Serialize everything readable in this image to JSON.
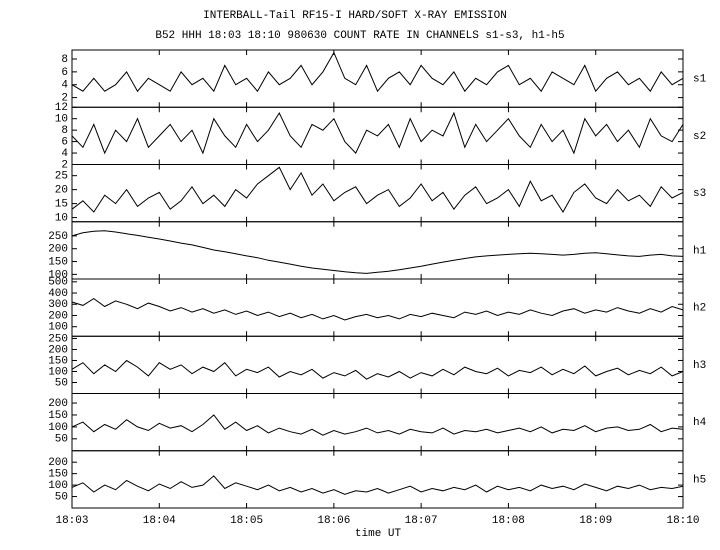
{
  "chart_data": {
    "type": "multi-panel-line",
    "title": "INTERBALL-Tail RF15-I HARD/SOFT X-RAY EMISSION",
    "subtitle": "B52 HHH 18:03 18:10 980630  COUNT RATE IN CHANNELS s1-s3, h1-h5",
    "xlabel": "time UT",
    "xlim": [
      0,
      7
    ],
    "xticks": [
      {
        "value": 0,
        "label": "18:03"
      },
      {
        "value": 1,
        "label": "18:04"
      },
      {
        "value": 2,
        "label": "18:05"
      },
      {
        "value": 3,
        "label": "18:06"
      },
      {
        "value": 4,
        "label": "18:07"
      },
      {
        "value": 5,
        "label": "18:08"
      },
      {
        "value": 6,
        "label": "18:09"
      },
      {
        "value": 7,
        "label": "18:10"
      }
    ],
    "x": [
      0,
      0.125,
      0.25,
      0.375,
      0.5,
      0.625,
      0.75,
      0.875,
      1,
      1.125,
      1.25,
      1.375,
      1.5,
      1.625,
      1.75,
      1.875,
      2,
      2.125,
      2.25,
      2.375,
      2.5,
      2.625,
      2.75,
      2.875,
      3,
      3.125,
      3.25,
      3.375,
      3.5,
      3.625,
      3.75,
      3.875,
      4,
      4.125,
      4.25,
      4.375,
      4.5,
      4.625,
      4.75,
      4.875,
      5,
      5.125,
      5.25,
      5.375,
      5.5,
      5.625,
      5.75,
      5.875,
      6,
      6.125,
      6.25,
      6.375,
      6.5,
      6.625,
      6.75,
      6.875,
      7
    ],
    "color": "#000000",
    "panels": [
      {
        "name": "s1",
        "ylim": [
          0.5,
          9.4
        ],
        "yticks": [
          2,
          4,
          6,
          8
        ],
        "values": [
          4,
          3,
          5,
          3,
          4,
          6,
          3,
          5,
          4,
          3,
          6,
          4,
          5,
          3,
          7,
          4,
          5,
          3,
          6,
          4,
          5,
          7,
          4,
          6,
          9,
          5,
          4,
          7,
          3,
          5,
          6,
          4,
          7,
          5,
          4,
          6,
          3,
          5,
          4,
          6,
          7,
          4,
          5,
          3,
          6,
          5,
          4,
          7,
          3,
          5,
          6,
          4,
          5,
          3,
          6,
          4,
          5
        ]
      },
      {
        "name": "s2",
        "ylim": [
          2,
          12
        ],
        "yticks": [
          2,
          4,
          6,
          8,
          10,
          12
        ],
        "values": [
          7,
          5,
          9,
          4,
          8,
          6,
          10,
          5,
          7,
          9,
          6,
          8,
          4,
          10,
          7,
          5,
          9,
          6,
          8,
          11,
          7,
          5,
          9,
          8,
          10,
          6,
          4,
          8,
          7,
          9,
          5,
          10,
          6,
          8,
          7,
          11,
          5,
          9,
          6,
          8,
          10,
          7,
          5,
          9,
          6,
          8,
          4,
          10,
          7,
          9,
          6,
          8,
          5,
          10,
          7,
          6,
          9
        ]
      },
      {
        "name": "s3",
        "ylim": [
          8.5,
          29
        ],
        "yticks": [
          10,
          15,
          20,
          25
        ],
        "values": [
          13,
          16,
          12,
          18,
          15,
          20,
          14,
          17,
          19,
          13,
          16,
          21,
          15,
          18,
          14,
          20,
          17,
          22,
          25,
          28,
          20,
          26,
          18,
          22,
          16,
          19,
          21,
          15,
          18,
          20,
          14,
          17,
          22,
          16,
          19,
          13,
          18,
          21,
          15,
          17,
          20,
          14,
          23,
          16,
          18,
          12,
          19,
          22,
          17,
          15,
          20,
          16,
          18,
          14,
          21,
          17,
          19
        ]
      },
      {
        "name": "h1",
        "ylim": [
          82,
          305
        ],
        "yticks": [
          100,
          150,
          200,
          250
        ],
        "values": [
          250,
          262,
          268,
          270,
          265,
          258,
          252,
          245,
          238,
          230,
          222,
          215,
          205,
          195,
          188,
          180,
          172,
          165,
          155,
          148,
          140,
          132,
          125,
          120,
          115,
          110,
          106,
          104,
          108,
          112,
          118,
          125,
          132,
          140,
          148,
          155,
          162,
          168,
          172,
          175,
          178,
          180,
          182,
          180,
          178,
          175,
          178,
          182,
          184,
          180,
          176,
          172,
          170,
          175,
          178,
          172,
          170
        ]
      },
      {
        "name": "h2",
        "ylim": [
          15,
          525
        ],
        "yticks": [
          100,
          200,
          300,
          400,
          500
        ],
        "values": [
          320,
          290,
          350,
          280,
          330,
          300,
          260,
          310,
          280,
          240,
          270,
          230,
          260,
          220,
          250,
          210,
          240,
          200,
          230,
          190,
          220,
          180,
          210,
          170,
          200,
          160,
          190,
          210,
          180,
          200,
          170,
          210,
          190,
          220,
          200,
          180,
          230,
          210,
          240,
          200,
          230,
          210,
          250,
          220,
          200,
          240,
          260,
          220,
          250,
          230,
          270,
          240,
          220,
          260,
          230,
          280,
          250
        ]
      },
      {
        "name": "h3",
        "ylim": [
          0,
          260
        ],
        "yticks": [
          50,
          100,
          150,
          200,
          250
        ],
        "values": [
          110,
          140,
          90,
          130,
          100,
          150,
          120,
          80,
          140,
          110,
          130,
          90,
          120,
          100,
          140,
          80,
          110,
          95,
          120,
          75,
          100,
          85,
          110,
          70,
          95,
          80,
          105,
          65,
          90,
          75,
          100,
          70,
          95,
          80,
          110,
          85,
          120,
          100,
          90,
          115,
          80,
          105,
          95,
          120,
          85,
          110,
          90,
          125,
          80,
          100,
          115,
          85,
          105,
          90,
          120,
          80,
          100
        ]
      },
      {
        "name": "h4",
        "ylim": [
          0,
          240
        ],
        "yticks": [
          50,
          100,
          150,
          200
        ],
        "values": [
          100,
          120,
          80,
          110,
          90,
          130,
          100,
          85,
          115,
          95,
          105,
          80,
          110,
          150,
          90,
          120,
          85,
          105,
          75,
          95,
          80,
          70,
          90,
          65,
          85,
          70,
          80,
          95,
          75,
          85,
          70,
          90,
          80,
          75,
          95,
          70,
          85,
          80,
          90,
          75,
          85,
          95,
          80,
          100,
          75,
          90,
          85,
          105,
          80,
          95,
          100,
          85,
          90,
          110,
          80,
          95,
          90
        ]
      },
      {
        "name": "h5",
        "ylim": [
          0,
          250
        ],
        "yticks": [
          50,
          100,
          150,
          200
        ],
        "values": [
          90,
          110,
          70,
          100,
          80,
          120,
          95,
          75,
          105,
          85,
          115,
          90,
          100,
          140,
          85,
          110,
          95,
          80,
          100,
          75,
          90,
          70,
          85,
          65,
          80,
          60,
          75,
          70,
          85,
          65,
          80,
          95,
          70,
          85,
          75,
          90,
          80,
          100,
          70,
          95,
          80,
          90,
          75,
          100,
          85,
          95,
          80,
          105,
          90,
          75,
          95,
          85,
          100,
          80,
          90,
          85,
          95
        ]
      }
    ]
  }
}
